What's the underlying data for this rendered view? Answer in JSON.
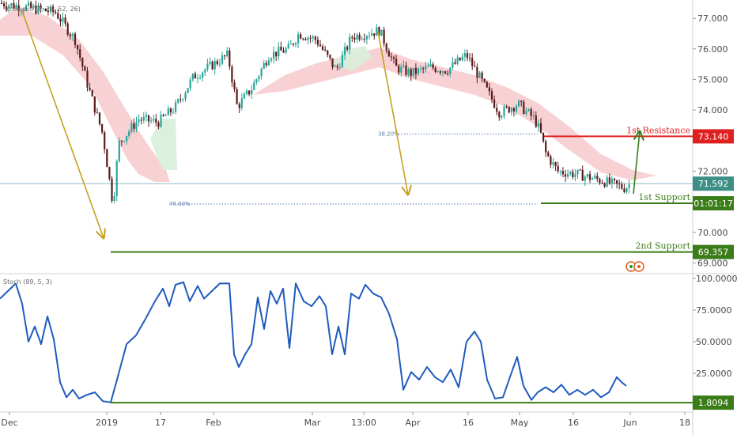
{
  "indicators": {
    "ichimoku_label": "Ichimoku (9, 26, 52, 26)",
    "stoch_label": "Stoch (89, 5, 3)"
  },
  "chart_data": [
    {
      "type": "candlestick",
      "panel": "price",
      "ylim": [
        68.7,
        77.6
      ],
      "y_ticks": [
        "77.000",
        "76.000",
        "75.000",
        "74.000",
        "72.000",
        "70.000",
        "69.000"
      ],
      "x_ticks": [
        "Dec",
        "2019",
        "17",
        "Feb",
        "Mar",
        "13:00",
        "Apr",
        "16",
        "May",
        "16",
        "Jun",
        "18"
      ],
      "price_path": [
        {
          "x": 0,
          "y": 77.5
        },
        {
          "x": 70,
          "y": 77.2
        },
        {
          "x": 95,
          "y": 76.3
        },
        {
          "x": 110,
          "y": 74.9
        },
        {
          "x": 130,
          "y": 73.2
        },
        {
          "x": 143,
          "y": 70.9
        },
        {
          "x": 150,
          "y": 72.9
        },
        {
          "x": 175,
          "y": 73.7
        },
        {
          "x": 200,
          "y": 73.6
        },
        {
          "x": 222,
          "y": 74.1
        },
        {
          "x": 245,
          "y": 75.1
        },
        {
          "x": 270,
          "y": 75.5
        },
        {
          "x": 288,
          "y": 75.8
        },
        {
          "x": 300,
          "y": 74.1
        },
        {
          "x": 318,
          "y": 74.7
        },
        {
          "x": 340,
          "y": 75.8
        },
        {
          "x": 365,
          "y": 76.0
        },
        {
          "x": 378,
          "y": 76.5
        },
        {
          "x": 400,
          "y": 76.3
        },
        {
          "x": 425,
          "y": 75.3
        },
        {
          "x": 445,
          "y": 76.4
        },
        {
          "x": 480,
          "y": 76.6
        },
        {
          "x": 500,
          "y": 75.4
        },
        {
          "x": 520,
          "y": 75.2
        },
        {
          "x": 545,
          "y": 75.4
        },
        {
          "x": 565,
          "y": 75.3
        },
        {
          "x": 590,
          "y": 75.8
        },
        {
          "x": 610,
          "y": 74.9
        },
        {
          "x": 632,
          "y": 73.9
        },
        {
          "x": 655,
          "y": 74.2
        },
        {
          "x": 676,
          "y": 73.7
        },
        {
          "x": 683,
          "y": 73.3
        },
        {
          "x": 690,
          "y": 72.6
        },
        {
          "x": 705,
          "y": 72.0
        },
        {
          "x": 730,
          "y": 71.9
        },
        {
          "x": 760,
          "y": 71.7
        },
        {
          "x": 790,
          "y": 71.45
        },
        {
          "x": 798,
          "y": 71.6
        }
      ],
      "current_price_line": 71.592,
      "levels": [
        {
          "name": "1st Resistance",
          "value": 73.14,
          "tag": "73.140",
          "color": "#e02020"
        },
        {
          "name": "1st Support",
          "value": 70.95,
          "tag": "01:01:17",
          "color": "#3a7d18"
        },
        {
          "name": "2nd Support",
          "value": 69.357,
          "tag": "69.357",
          "color": "#3a7d18"
        }
      ],
      "current_price_tag": "71.592",
      "fib_labels": [
        "38.20%",
        "78.60%"
      ],
      "colors": {
        "up": "#26a69a",
        "down": "#5b1a1a",
        "arrow": "#c8a020",
        "arrow_up": "#3a7d18",
        "cloud": "#f7c9cd",
        "cloud_green": "#d7eedc"
      }
    },
    {
      "type": "line",
      "panel": "stochastic",
      "ylim": [
        0,
        100
      ],
      "y_ticks": [
        "100.0000",
        "75.0000",
        "50.0000",
        "25.0000"
      ],
      "support_line": 1.8094,
      "support_tag": "1.8094",
      "series": [
        {
          "color": "#1f5bbf",
          "points": [
            {
              "x": 0,
              "y": 84
            },
            {
              "x": 10,
              "y": 90
            },
            {
              "x": 20,
              "y": 96
            },
            {
              "x": 28,
              "y": 80
            },
            {
              "x": 36,
              "y": 50
            },
            {
              "x": 44,
              "y": 62
            },
            {
              "x": 52,
              "y": 48
            },
            {
              "x": 60,
              "y": 70
            },
            {
              "x": 68,
              "y": 52
            },
            {
              "x": 76,
              "y": 18
            },
            {
              "x": 84,
              "y": 6
            },
            {
              "x": 92,
              "y": 12
            },
            {
              "x": 100,
              "y": 5
            },
            {
              "x": 110,
              "y": 8
            },
            {
              "x": 120,
              "y": 10
            },
            {
              "x": 130,
              "y": 3
            },
            {
              "x": 140,
              "y": 2
            },
            {
              "x": 148,
              "y": 20
            },
            {
              "x": 160,
              "y": 48
            },
            {
              "x": 172,
              "y": 55
            },
            {
              "x": 184,
              "y": 68
            },
            {
              "x": 196,
              "y": 82
            },
            {
              "x": 206,
              "y": 92
            },
            {
              "x": 214,
              "y": 78
            },
            {
              "x": 222,
              "y": 95
            },
            {
              "x": 232,
              "y": 97
            },
            {
              "x": 240,
              "y": 82
            },
            {
              "x": 250,
              "y": 94
            },
            {
              "x": 258,
              "y": 84
            },
            {
              "x": 268,
              "y": 90
            },
            {
              "x": 278,
              "y": 96
            },
            {
              "x": 290,
              "y": 96
            },
            {
              "x": 296,
              "y": 40
            },
            {
              "x": 302,
              "y": 30
            },
            {
              "x": 310,
              "y": 40
            },
            {
              "x": 318,
              "y": 48
            },
            {
              "x": 326,
              "y": 85
            },
            {
              "x": 334,
              "y": 60
            },
            {
              "x": 342,
              "y": 90
            },
            {
              "x": 350,
              "y": 80
            },
            {
              "x": 358,
              "y": 92
            },
            {
              "x": 366,
              "y": 45
            },
            {
              "x": 374,
              "y": 96
            },
            {
              "x": 384,
              "y": 82
            },
            {
              "x": 394,
              "y": 78
            },
            {
              "x": 404,
              "y": 86
            },
            {
              "x": 412,
              "y": 78
            },
            {
              "x": 420,
              "y": 40
            },
            {
              "x": 428,
              "y": 62
            },
            {
              "x": 436,
              "y": 40
            },
            {
              "x": 444,
              "y": 88
            },
            {
              "x": 454,
              "y": 84
            },
            {
              "x": 462,
              "y": 95
            },
            {
              "x": 472,
              "y": 88
            },
            {
              "x": 482,
              "y": 85
            },
            {
              "x": 492,
              "y": 72
            },
            {
              "x": 502,
              "y": 52
            },
            {
              "x": 510,
              "y": 12
            },
            {
              "x": 520,
              "y": 26
            },
            {
              "x": 530,
              "y": 20
            },
            {
              "x": 540,
              "y": 30
            },
            {
              "x": 550,
              "y": 22
            },
            {
              "x": 560,
              "y": 18
            },
            {
              "x": 570,
              "y": 28
            },
            {
              "x": 580,
              "y": 14
            },
            {
              "x": 590,
              "y": 50
            },
            {
              "x": 600,
              "y": 58
            },
            {
              "x": 608,
              "y": 50
            },
            {
              "x": 616,
              "y": 20
            },
            {
              "x": 626,
              "y": 5
            },
            {
              "x": 636,
              "y": 6
            },
            {
              "x": 646,
              "y": 24
            },
            {
              "x": 654,
              "y": 38
            },
            {
              "x": 662,
              "y": 15
            },
            {
              "x": 672,
              "y": 4
            },
            {
              "x": 680,
              "y": 10
            },
            {
              "x": 690,
              "y": 14
            },
            {
              "x": 700,
              "y": 10
            },
            {
              "x": 710,
              "y": 16
            },
            {
              "x": 720,
              "y": 8
            },
            {
              "x": 730,
              "y": 12
            },
            {
              "x": 740,
              "y": 8
            },
            {
              "x": 750,
              "y": 12
            },
            {
              "x": 760,
              "y": 6
            },
            {
              "x": 770,
              "y": 10
            },
            {
              "x": 780,
              "y": 22
            },
            {
              "x": 786,
              "y": 18
            },
            {
              "x": 792,
              "y": 15
            }
          ]
        }
      ]
    }
  ]
}
